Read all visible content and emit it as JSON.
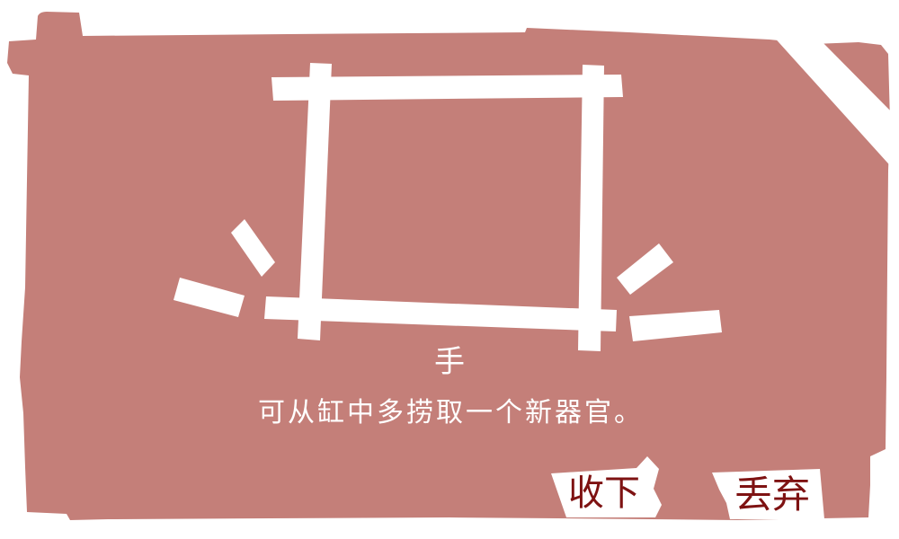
{
  "reward": {
    "item_name": "手",
    "item_description": "可从缸中多捞取一个新器官。"
  },
  "actions": {
    "accept_label": "收下",
    "discard_label": "丢弃"
  },
  "icons": {
    "item_image": "item-frame-icon",
    "highlight": "sparkle-icon"
  },
  "colors": {
    "page_background": "#FFFFFF",
    "panel": "#C47F79",
    "frame": "#FFFFFF",
    "text": "#FFFFFF",
    "button_background": "#FFFFFF",
    "button_text": "#7E1212"
  }
}
